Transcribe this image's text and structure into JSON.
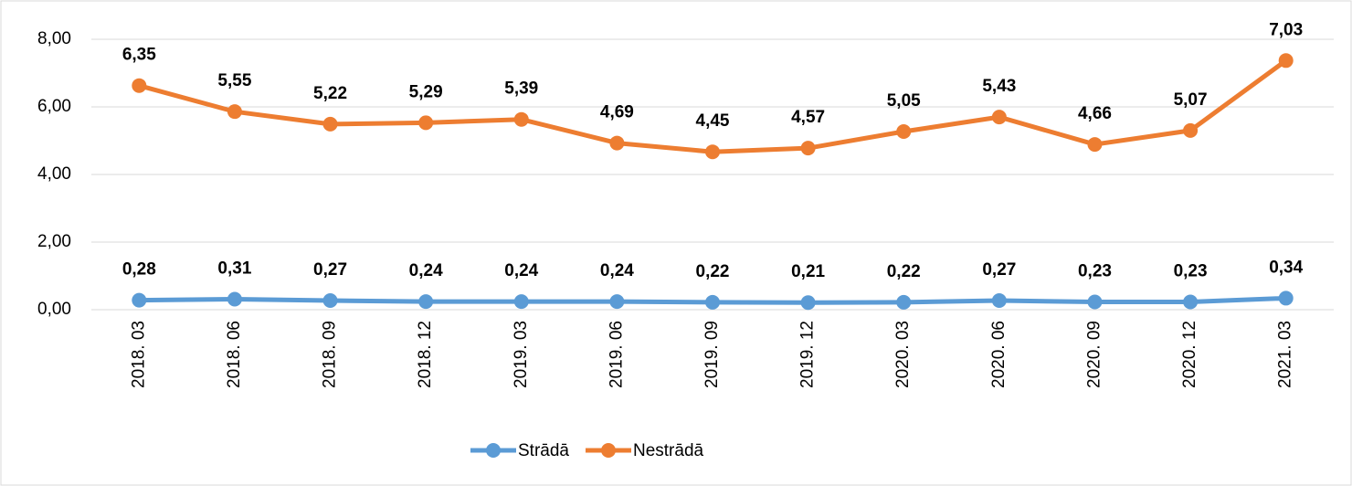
{
  "chart_data": {
    "type": "line",
    "stacked": true,
    "categories": [
      "2018. 03",
      "2018. 06",
      "2018. 09",
      "2018. 12",
      "2019. 03",
      "2019. 06",
      "2019. 09",
      "2019. 12",
      "2020. 03",
      "2020. 06",
      "2020. 09",
      "2020. 12",
      "2021. 03"
    ],
    "series": [
      {
        "name": "Strādā",
        "color": "#5b9bd5",
        "values": [
          0.28,
          0.31,
          0.27,
          0.24,
          0.24,
          0.24,
          0.22,
          0.21,
          0.22,
          0.27,
          0.23,
          0.23,
          0.34
        ],
        "value_labels": [
          "0,28",
          "0,31",
          "0,27",
          "0,24",
          "0,24",
          "0,24",
          "0,22",
          "0,21",
          "0,22",
          "0,27",
          "0,23",
          "0,23",
          "0,34"
        ]
      },
      {
        "name": "Nestrādā",
        "color": "#ed7d31",
        "values": [
          6.35,
          5.55,
          5.22,
          5.29,
          5.39,
          4.69,
          4.45,
          4.57,
          5.05,
          5.43,
          4.66,
          5.07,
          7.03
        ],
        "value_labels": [
          "6,35",
          "5,55",
          "5,22",
          "5,29",
          "5,39",
          "4,69",
          "4,45",
          "4,57",
          "5,05",
          "5,43",
          "4,66",
          "5,07",
          "7,03"
        ]
      }
    ],
    "ylim": [
      0,
      8
    ],
    "yticks": [
      {
        "value": 0,
        "label": "0,00"
      },
      {
        "value": 2,
        "label": "2,00"
      },
      {
        "value": 4,
        "label": "4,00"
      },
      {
        "value": 6,
        "label": "6,00"
      },
      {
        "value": 8,
        "label": "8,00"
      }
    ],
    "grid": true,
    "legend": "bottom"
  }
}
